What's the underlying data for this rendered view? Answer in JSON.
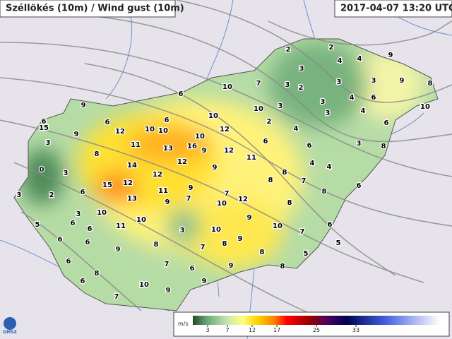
{
  "header": {
    "title": "Széllökés (10m) / Wind gust (10m)",
    "timestamp": "2017-04-07 13:20 UTC"
  },
  "map_labels": [
    2,
    2,
    9,
    4,
    4,
    3,
    8,
    9,
    3,
    3,
    2,
    3,
    7,
    10,
    6,
    3,
    4,
    6,
    10,
    9,
    3,
    10,
    3,
    4,
    6,
    10,
    6,
    6,
    2,
    4,
    6,
    15,
    10,
    10,
    12,
    12,
    9,
    10,
    6,
    6,
    3,
    8,
    3,
    11,
    13,
    16,
    9,
    12,
    8,
    11,
    12,
    4,
    4,
    14,
    9,
    3,
    0,
    12,
    8,
    8,
    7,
    6,
    15,
    12,
    9,
    7,
    11,
    6,
    2,
    3,
    8,
    13,
    12,
    9,
    7,
    10,
    8,
    3,
    10,
    10,
    9,
    5,
    6,
    11,
    6,
    3,
    10,
    10,
    6,
    7,
    6,
    9,
    6,
    8,
    8,
    5,
    9,
    7,
    8,
    5,
    6,
    7,
    6,
    9,
    8,
    8,
    9,
    6,
    10,
    9,
    7
  ],
  "legend": {
    "unit": "m/s",
    "ticks": [
      3,
      7,
      12,
      17,
      25,
      33
    ]
  },
  "logo": "OMSZ"
}
